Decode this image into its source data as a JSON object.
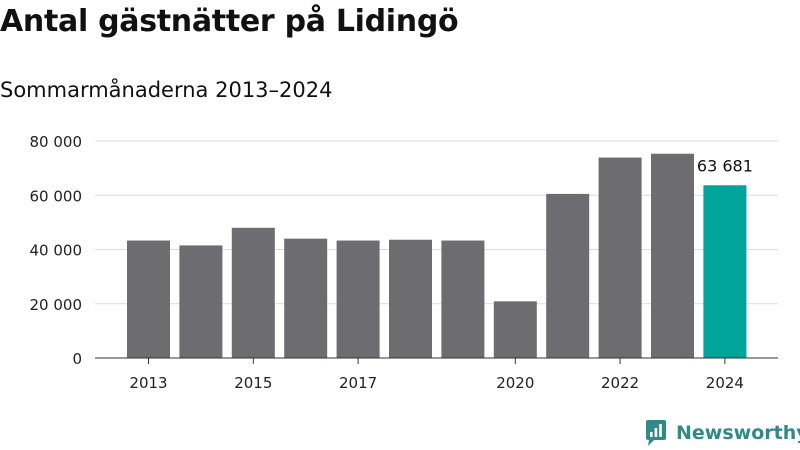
{
  "chart_data": {
    "type": "bar",
    "title": "Antal gästnätter på Lidingö",
    "subtitle": "Sommarmånaderna 2013–2024",
    "categories": [
      "2013",
      "2014",
      "2015",
      "2016",
      "2017",
      "2018",
      "2019",
      "2020",
      "2021",
      "2022",
      "2023",
      "2024"
    ],
    "values": [
      43300,
      41500,
      48000,
      44000,
      43300,
      43600,
      43300,
      20900,
      60500,
      73900,
      75300,
      63681
    ],
    "xtick_labels": [
      "2013",
      "",
      "2015",
      "",
      "2017",
      "",
      "",
      "2020",
      "",
      "2022",
      "",
      "2024"
    ],
    "yticks": [
      0,
      20000,
      40000,
      60000,
      80000
    ],
    "ytick_labels": [
      "0",
      "20 000",
      "40 000",
      "60 000",
      "80 000"
    ],
    "ylim": [
      0,
      80000
    ],
    "data_label": {
      "index": 11,
      "text": "63 681"
    },
    "grid": true,
    "xlabel": "",
    "ylabel": "",
    "colors": {
      "bar": "#6d6c71",
      "highlight": "#00a49b",
      "grid": "#dcdcdc",
      "axis": "#333333",
      "tick_text": "#222222"
    }
  },
  "brand": {
    "name": "Newsworthy",
    "color": "#2f8a88",
    "icon": "newsworthy-logo-icon"
  }
}
